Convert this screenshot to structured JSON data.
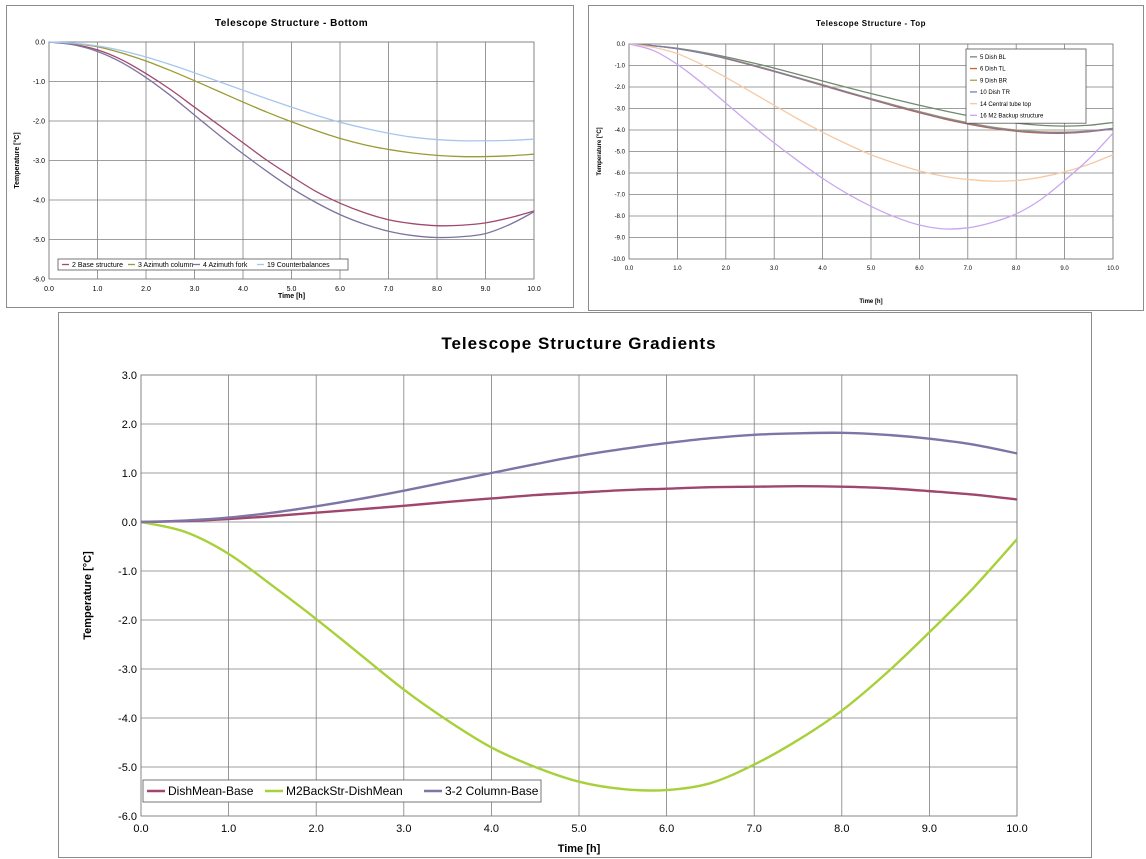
{
  "chart_data": [
    {
      "type": "line",
      "title": "Telescope Structure - Bottom",
      "xlabel": "Time [h]",
      "ylabel": "Temperature [°C]",
      "xlim": [
        0,
        10
      ],
      "ylim": [
        -6,
        0
      ],
      "grid": true,
      "legend_position": "bottom-left",
      "xticks": [
        "0.0",
        "1.0",
        "2.0",
        "3.0",
        "4.0",
        "5.0",
        "6.0",
        "7.0",
        "8.0",
        "9.0",
        "10.0"
      ],
      "yticks": [
        "0.0",
        "-1.0",
        "-2.0",
        "-3.0",
        "-4.0",
        "-5.0",
        "-6.0"
      ],
      "series": [
        {
          "name": "2 Base structure",
          "color": "#a0486e",
          "x": [
            0,
            0.5,
            1,
            1.5,
            2,
            2.5,
            3,
            3.5,
            4,
            4.5,
            5,
            5.5,
            6,
            6.5,
            7,
            7.5,
            8,
            8.5,
            9,
            9.5,
            10
          ],
          "y": [
            0,
            -0.06,
            -0.2,
            -0.45,
            -0.8,
            -1.2,
            -1.65,
            -2.1,
            -2.55,
            -3.0,
            -3.4,
            -3.78,
            -4.08,
            -4.32,
            -4.5,
            -4.6,
            -4.65,
            -4.64,
            -4.58,
            -4.45,
            -4.28
          ]
        },
        {
          "name": "3 Azimuth column",
          "color": "#9c9a34",
          "x": [
            0,
            0.5,
            1,
            1.5,
            2,
            2.5,
            3,
            3.5,
            4,
            4.5,
            5,
            5.5,
            6,
            6.5,
            7,
            7.5,
            8,
            8.5,
            9,
            9.5,
            10
          ],
          "y": [
            0,
            -0.04,
            -0.12,
            -0.28,
            -0.48,
            -0.72,
            -0.98,
            -1.25,
            -1.52,
            -1.78,
            -2.02,
            -2.24,
            -2.44,
            -2.6,
            -2.72,
            -2.81,
            -2.87,
            -2.9,
            -2.9,
            -2.88,
            -2.84
          ]
        },
        {
          "name": "4 Azimuth fork",
          "color": "#7d739e",
          "x": [
            0,
            0.5,
            1,
            1.5,
            2,
            2.5,
            3,
            3.5,
            4,
            4.5,
            5,
            5.5,
            6,
            6.5,
            7,
            7.5,
            8,
            8.5,
            9,
            9.5,
            10
          ],
          "y": [
            0,
            -0.07,
            -0.24,
            -0.52,
            -0.9,
            -1.35,
            -1.85,
            -2.35,
            -2.83,
            -3.28,
            -3.7,
            -4.06,
            -4.37,
            -4.61,
            -4.79,
            -4.9,
            -4.95,
            -4.93,
            -4.85,
            -4.62,
            -4.3
          ]
        },
        {
          "name": "19 Counterbalances",
          "color": "#a6c6ee",
          "x": [
            0,
            0.5,
            1,
            1.5,
            2,
            2.5,
            3,
            3.5,
            4,
            4.5,
            5,
            5.5,
            6,
            6.5,
            7,
            7.5,
            8,
            8.5,
            9,
            9.5,
            10
          ],
          "y": [
            0,
            -0.03,
            -0.1,
            -0.22,
            -0.38,
            -0.57,
            -0.78,
            -1.0,
            -1.22,
            -1.44,
            -1.65,
            -1.85,
            -2.03,
            -2.18,
            -2.31,
            -2.41,
            -2.47,
            -2.5,
            -2.5,
            -2.49,
            -2.46
          ]
        }
      ]
    },
    {
      "type": "line",
      "title": "Telescope Structure - Top",
      "xlabel": "Time [h]",
      "ylabel": "Temperature [°C]",
      "xlim": [
        0,
        10
      ],
      "ylim": [
        -10,
        0
      ],
      "grid": true,
      "legend_position": "top-right",
      "xticks": [
        "0.0",
        "1.0",
        "2.0",
        "3.0",
        "4.0",
        "5.0",
        "6.0",
        "7.0",
        "8.0",
        "9.0",
        "10.0"
      ],
      "yticks": [
        "0.0",
        "-1.0",
        "-2.0",
        "-3.0",
        "-4.0",
        "-5.0",
        "-6.0",
        "-7.0",
        "-8.0",
        "-9.0",
        "-10.0"
      ],
      "series": [
        {
          "name": "5 Dish BL",
          "color": "#6f8a6d",
          "x": [
            0,
            0.5,
            1,
            1.5,
            2,
            2.5,
            3,
            3.5,
            4,
            4.5,
            5,
            5.5,
            6,
            6.5,
            7,
            7.5,
            8,
            8.5,
            9,
            9.5,
            10
          ],
          "y": [
            0,
            -0.08,
            -0.2,
            -0.38,
            -0.6,
            -0.85,
            -1.12,
            -1.42,
            -1.72,
            -2.02,
            -2.3,
            -2.58,
            -2.85,
            -3.1,
            -3.33,
            -3.52,
            -3.68,
            -3.78,
            -3.82,
            -3.78,
            -3.65
          ]
        },
        {
          "name": "6 Dish TL",
          "color": "#c9622f",
          "x": [
            0,
            0.5,
            1,
            1.5,
            2,
            2.5,
            3,
            3.5,
            4,
            4.5,
            5,
            5.5,
            6,
            6.5,
            7,
            7.5,
            8,
            8.5,
            9,
            9.5,
            10
          ],
          "y": [
            0,
            -0.08,
            -0.22,
            -0.42,
            -0.68,
            -0.97,
            -1.28,
            -1.6,
            -1.93,
            -2.26,
            -2.58,
            -2.9,
            -3.2,
            -3.48,
            -3.72,
            -3.92,
            -4.06,
            -4.14,
            -4.15,
            -4.08,
            -3.94
          ]
        },
        {
          "name": "9 Dish BR",
          "color": "#a9a04e",
          "x": [
            0,
            0.5,
            1,
            1.5,
            2,
            2.5,
            3,
            3.5,
            4,
            4.5,
            5,
            5.5,
            6,
            6.5,
            7,
            7.5,
            8,
            8.5,
            9,
            9.5,
            10
          ],
          "y": [
            0,
            -0.08,
            -0.21,
            -0.41,
            -0.66,
            -0.94,
            -1.25,
            -1.57,
            -1.89,
            -2.22,
            -2.54,
            -2.85,
            -3.14,
            -3.42,
            -3.66,
            -3.86,
            -4.0,
            -4.08,
            -4.1,
            -4.05,
            -3.92
          ]
        },
        {
          "name": "10 Dish TR",
          "color": "#7e7bb0",
          "x": [
            0,
            0.5,
            1,
            1.5,
            2,
            2.5,
            3,
            3.5,
            4,
            4.5,
            5,
            5.5,
            6,
            6.5,
            7,
            7.5,
            8,
            8.5,
            9,
            9.5,
            10
          ],
          "y": [
            0,
            -0.08,
            -0.22,
            -0.42,
            -0.67,
            -0.96,
            -1.27,
            -1.59,
            -1.91,
            -2.24,
            -2.56,
            -2.87,
            -3.17,
            -3.45,
            -3.69,
            -3.89,
            -4.03,
            -4.11,
            -4.12,
            -4.06,
            -3.93
          ]
        },
        {
          "name": "14 Central tube top",
          "color": "#f6c9a4",
          "x": [
            0,
            0.5,
            1,
            1.5,
            2,
            2.5,
            3,
            3.5,
            4,
            4.5,
            5,
            5.5,
            6,
            6.5,
            7,
            7.5,
            8,
            8.5,
            9,
            9.5,
            10
          ],
          "y": [
            0,
            -0.15,
            -0.45,
            -0.95,
            -1.55,
            -2.2,
            -2.85,
            -3.5,
            -4.1,
            -4.65,
            -5.15,
            -5.55,
            -5.9,
            -6.15,
            -6.3,
            -6.38,
            -6.35,
            -6.2,
            -5.95,
            -5.6,
            -5.15
          ]
        },
        {
          "name": "16 M2 Backup structure",
          "color": "#c9a7ee",
          "x": [
            0,
            0.5,
            1,
            1.5,
            2,
            2.5,
            3,
            3.5,
            4,
            4.5,
            5,
            5.5,
            6,
            6.5,
            7,
            7.5,
            8,
            8.5,
            9,
            9.5,
            10
          ],
          "y": [
            0,
            -0.3,
            -0.95,
            -1.8,
            -2.75,
            -3.7,
            -4.6,
            -5.45,
            -6.25,
            -6.95,
            -7.55,
            -8.05,
            -8.42,
            -8.6,
            -8.55,
            -8.3,
            -7.9,
            -7.25,
            -6.35,
            -5.35,
            -4.15
          ]
        }
      ]
    },
    {
      "type": "line",
      "title": "Telescope Structure Gradients",
      "xlabel": "Time [h]",
      "ylabel": "Temperature [°C]",
      "xlim": [
        0,
        10
      ],
      "ylim": [
        -6,
        3
      ],
      "grid": true,
      "legend_position": "bottom-left",
      "xticks": [
        "0.0",
        "1.0",
        "2.0",
        "3.0",
        "4.0",
        "5.0",
        "6.0",
        "7.0",
        "8.0",
        "9.0",
        "10.0"
      ],
      "yticks": [
        "3.0",
        "2.0",
        "1.0",
        "0.0",
        "-1.0",
        "-2.0",
        "-3.0",
        "-4.0",
        "-5.0",
        "-6.0"
      ],
      "series": [
        {
          "name": "DishMean-Base",
          "color": "#a0466c",
          "x": [
            0,
            0.5,
            1,
            1.5,
            2,
            2.5,
            3,
            3.5,
            4,
            4.5,
            5,
            5.5,
            6,
            6.5,
            7,
            7.5,
            8,
            8.5,
            9,
            9.5,
            10
          ],
          "y": [
            0,
            0.02,
            0.06,
            0.12,
            0.19,
            0.26,
            0.33,
            0.41,
            0.48,
            0.55,
            0.6,
            0.65,
            0.68,
            0.71,
            0.72,
            0.73,
            0.72,
            0.69,
            0.63,
            0.56,
            0.46
          ]
        },
        {
          "name": "M2BackStr-DishMean",
          "color": "#a8d03a",
          "x": [
            0,
            0.5,
            1,
            1.5,
            2,
            2.5,
            3,
            3.5,
            4,
            4.5,
            5,
            5.5,
            6,
            6.5,
            7,
            7.5,
            8,
            8.5,
            9,
            9.5,
            10
          ],
          "y": [
            0,
            -0.2,
            -0.65,
            -1.3,
            -1.98,
            -2.7,
            -3.42,
            -4.05,
            -4.6,
            -5.0,
            -5.3,
            -5.45,
            -5.47,
            -5.33,
            -4.95,
            -4.45,
            -3.85,
            -3.1,
            -2.25,
            -1.35,
            -0.35
          ]
        },
        {
          "name": "3-2 Column-Base",
          "color": "#7e74a6",
          "x": [
            0,
            0.5,
            1,
            1.5,
            2,
            2.5,
            3,
            3.5,
            4,
            4.5,
            5,
            5.5,
            6,
            6.5,
            7,
            7.5,
            8,
            8.5,
            9,
            9.5,
            10
          ],
          "y": [
            0,
            0.03,
            0.09,
            0.19,
            0.32,
            0.47,
            0.64,
            0.82,
            1.0,
            1.18,
            1.35,
            1.49,
            1.61,
            1.71,
            1.78,
            1.81,
            1.82,
            1.78,
            1.7,
            1.58,
            1.4
          ]
        }
      ]
    }
  ]
}
